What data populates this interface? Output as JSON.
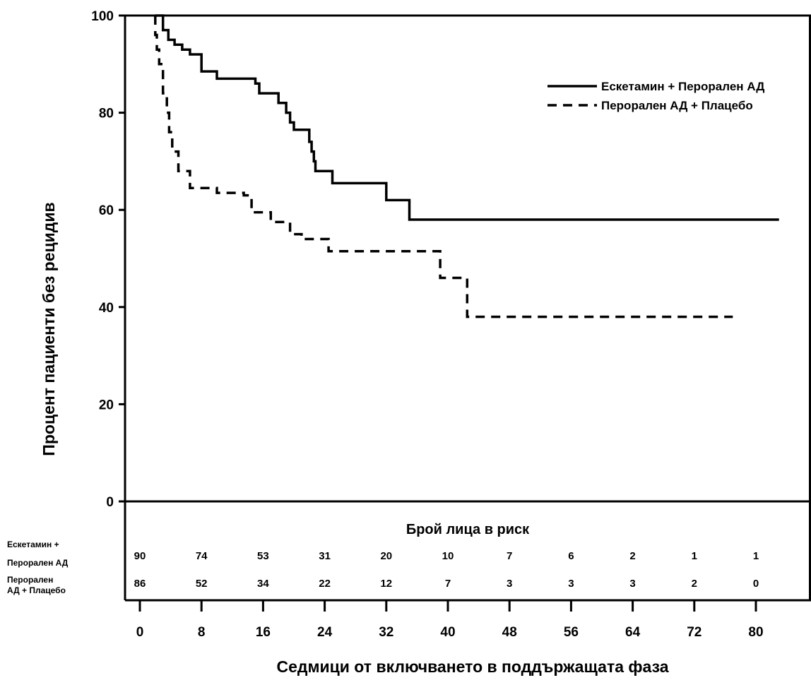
{
  "chart_data": {
    "type": "line",
    "xlabel": "Седмици от включването в поддържащата фаза",
    "ylabel": "Процент пациенти без рецидив",
    "x_ticks": [
      0,
      8,
      16,
      24,
      32,
      40,
      48,
      56,
      64,
      72,
      80
    ],
    "y_ticks": [
      0,
      20,
      40,
      60,
      80,
      100
    ],
    "ylim": [
      0,
      100
    ],
    "legend_placement": "top-right",
    "series": [
      {
        "name": "Ескетамин + Перорален АД",
        "style": "solid",
        "color": "#000000",
        "points": [
          [
            2,
            100
          ],
          [
            3,
            100
          ],
          [
            3,
            97
          ],
          [
            3.7,
            97
          ],
          [
            3.7,
            95
          ],
          [
            4.5,
            95
          ],
          [
            4.5,
            94
          ],
          [
            5.5,
            94
          ],
          [
            5.5,
            93
          ],
          [
            6.5,
            93
          ],
          [
            6.5,
            92
          ],
          [
            8,
            92
          ],
          [
            8,
            88.5
          ],
          [
            10,
            88.5
          ],
          [
            10,
            87
          ],
          [
            15,
            87
          ],
          [
            15,
            86
          ],
          [
            15.5,
            86
          ],
          [
            15.5,
            84
          ],
          [
            18,
            84
          ],
          [
            18,
            82
          ],
          [
            19,
            82
          ],
          [
            19,
            80
          ],
          [
            19.5,
            80
          ],
          [
            19.5,
            78
          ],
          [
            20,
            78
          ],
          [
            20,
            76.5
          ],
          [
            22,
            76.5
          ],
          [
            22,
            74
          ],
          [
            22.3,
            74
          ],
          [
            22.3,
            72
          ],
          [
            22.6,
            72
          ],
          [
            22.6,
            70
          ],
          [
            22.8,
            70
          ],
          [
            22.8,
            68
          ],
          [
            25,
            68
          ],
          [
            25,
            65.5
          ],
          [
            32,
            65.5
          ],
          [
            32,
            62
          ],
          [
            35,
            62
          ],
          [
            35,
            58
          ],
          [
            83,
            58
          ]
        ]
      },
      {
        "name": "Перорален АД + Плацебо",
        "style": "dashed",
        "color": "#000000",
        "points": [
          [
            2,
            100
          ],
          [
            2,
            96
          ],
          [
            2.2,
            96
          ],
          [
            2.2,
            93
          ],
          [
            2.5,
            93
          ],
          [
            2.5,
            90
          ],
          [
            3,
            90
          ],
          [
            3,
            84
          ],
          [
            3.5,
            84
          ],
          [
            3.5,
            80
          ],
          [
            3.8,
            80
          ],
          [
            3.8,
            76
          ],
          [
            4.2,
            76
          ],
          [
            4.2,
            72
          ],
          [
            5,
            72
          ],
          [
            5,
            68
          ],
          [
            6.5,
            68
          ],
          [
            6.5,
            64.5
          ],
          [
            10,
            64.5
          ],
          [
            10,
            63.5
          ],
          [
            13.5,
            63.5
          ],
          [
            13.5,
            63
          ],
          [
            14.5,
            63
          ],
          [
            14.5,
            59.5
          ],
          [
            17,
            59.5
          ],
          [
            17,
            57.5
          ],
          [
            19.5,
            57.5
          ],
          [
            19.5,
            55
          ],
          [
            21,
            55
          ],
          [
            21,
            54
          ],
          [
            24.5,
            54
          ],
          [
            24.5,
            51.5
          ],
          [
            39,
            51.5
          ],
          [
            39,
            46
          ],
          [
            42.5,
            46
          ],
          [
            42.5,
            38
          ],
          [
            77,
            38
          ]
        ]
      }
    ],
    "risk_table": {
      "title": "Брой лица в риск",
      "rows": [
        {
          "label_lines": [
            "Ескетамин +",
            "Перорален АД"
          ],
          "values": [
            "90",
            "74",
            "53",
            "31",
            "20",
            "10",
            "7",
            "6",
            "2",
            "1",
            "1"
          ]
        },
        {
          "label_lines": [
            "Перорален",
            "АД + Плацебо"
          ],
          "values": [
            "86",
            "52",
            "34",
            "22",
            "12",
            "7",
            "3",
            "3",
            "3",
            "2",
            "0"
          ]
        }
      ]
    }
  }
}
